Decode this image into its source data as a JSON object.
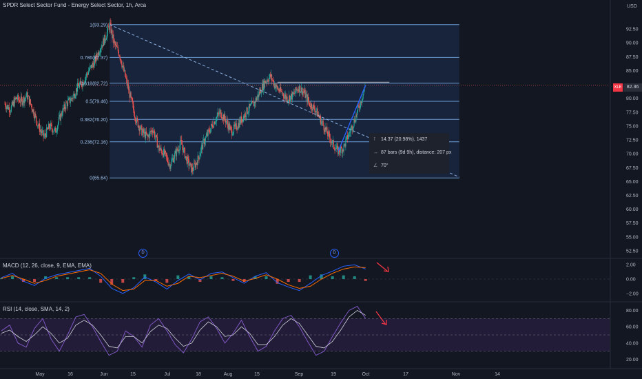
{
  "header": {
    "title": "SPDR Select Sector Fund - Energy Select Sector, 1h, Arca",
    "currency": "USD",
    "symbol_tag": "XLE",
    "last_price": "82.36"
  },
  "colors": {
    "background": "#131722",
    "up": "#26a69a",
    "down": "#ef5350",
    "fib_line": "#6c9bd2",
    "fib_fill": "#1b2a44",
    "trendline": "#8fb4e6",
    "macd_line": "#2962ff",
    "signal_line": "#ff6d00",
    "rsi_line": "#7e57c2",
    "rsi_band": "#2a1f42",
    "arrow": "#f23645"
  },
  "measure_tooltip": {
    "price_change": "14.37 (20.98%), 1437",
    "bars": "87 bars (9d 9h), distance: 207 px",
    "angle": "70°"
  },
  "events": [
    "D",
    "D"
  ],
  "chart_data": [
    {
      "type": "candlestick",
      "title": "SPDR Select Sector Fund - Energy Select Sector, 1h, Arca",
      "x_labels": [
        "May",
        "16",
        "Jun",
        "15",
        "Jul",
        "18",
        "Aug",
        "15",
        "Sep",
        "19",
        "Oct",
        "17",
        "Nov",
        "14"
      ],
      "y_ticks": [
        92.5,
        90,
        87.5,
        85,
        82.5,
        80,
        77.5,
        75,
        72.5,
        70,
        67.5,
        65,
        62.5,
        60,
        57.5,
        55,
        52.5
      ],
      "ylim": [
        51.5,
        95
      ],
      "last_price": 82.36,
      "close_path": [
        [
          0,
          79
        ],
        [
          0.4,
          78
        ],
        [
          0.8,
          80
        ],
        [
          1.2,
          79.5
        ],
        [
          1.6,
          80.5
        ],
        [
          2.0,
          78
        ],
        [
          2.4,
          75
        ],
        [
          2.8,
          73
        ],
        [
          3.2,
          75
        ],
        [
          3.6,
          74
        ],
        [
          4.0,
          77
        ],
        [
          4.4,
          79
        ],
        [
          4.8,
          80
        ],
        [
          5.2,
          82
        ],
        [
          5.6,
          83
        ],
        [
          6.0,
          85
        ],
        [
          6.4,
          86.5
        ],
        [
          6.8,
          89
        ],
        [
          7.2,
          91
        ],
        [
          7.5,
          93.29
        ],
        [
          7.8,
          90
        ],
        [
          8.2,
          88
        ],
        [
          8.6,
          84
        ],
        [
          9.0,
          80
        ],
        [
          9.4,
          76
        ],
        [
          9.8,
          74
        ],
        [
          10.2,
          73
        ],
        [
          10.6,
          74.5
        ],
        [
          11.0,
          71
        ],
        [
          11.4,
          70
        ],
        [
          11.8,
          68
        ],
        [
          12.2,
          70
        ],
        [
          12.6,
          72
        ],
        [
          13.0,
          69
        ],
        [
          13.4,
          67
        ],
        [
          13.8,
          69
        ],
        [
          14.2,
          72
        ],
        [
          14.6,
          74
        ],
        [
          15.0,
          76
        ],
        [
          15.4,
          77.5
        ],
        [
          15.8,
          76
        ],
        [
          16.2,
          74
        ],
        [
          16.6,
          75
        ],
        [
          17.0,
          76.5
        ],
        [
          17.4,
          78
        ],
        [
          17.8,
          79
        ],
        [
          18.2,
          81
        ],
        [
          18.6,
          83
        ],
        [
          19.0,
          84
        ],
        [
          19.4,
          82
        ],
        [
          19.8,
          81
        ],
        [
          20.2,
          80
        ],
        [
          20.6,
          80.5
        ],
        [
          21.0,
          82
        ],
        [
          21.4,
          81
        ],
        [
          21.8,
          79
        ],
        [
          22.2,
          78
        ],
        [
          22.6,
          76
        ],
        [
          23.0,
          74
        ],
        [
          23.4,
          72
        ],
        [
          23.8,
          70.5
        ],
        [
          24.2,
          71
        ],
        [
          24.6,
          73.5
        ],
        [
          25.0,
          76
        ],
        [
          25.4,
          79
        ],
        [
          25.8,
          82.36
        ]
      ],
      "fibonacci": [
        {
          "label": "1(93.29)",
          "value": 93.29
        },
        {
          "label": "0.786(87.37)",
          "value": 87.37
        },
        {
          "label": "0.618(82.72)",
          "value": 82.72
        },
        {
          "label": "0.5(79.46)",
          "value": 79.46
        },
        {
          "label": "0.382(76.20)",
          "value": 76.2
        },
        {
          "label": "0.236(72.16)",
          "value": 72.16
        },
        {
          "label": "0(65.64)",
          "value": 65.64
        }
      ],
      "trendline": {
        "from": [
          7.5,
          93.29
        ],
        "to": [
          32.5,
          65.8
        ],
        "style": "dashed"
      },
      "resistance_line": {
        "from": [
          19.5,
          82.9
        ],
        "to": [
          27.5,
          82.9
        ]
      },
      "grid": false,
      "legend": "top-left"
    },
    {
      "type": "line",
      "title": "MACD (12, 26, close, 9, EMA, EMA)",
      "y_ticks": [
        "2.00",
        "0.00",
        "−2.00"
      ],
      "ylim": [
        -2.6,
        2.6
      ],
      "series": [
        {
          "name": "MACD",
          "values": [
            0.2,
            0.8,
            -0.3,
            -0.9,
            0.1,
            0.6,
            0.9,
            1.2,
            1.5,
            0.4,
            -1.3,
            -2.0,
            -1.2,
            0.3,
            -0.4,
            -1.4,
            -0.2,
            0.7,
            -0.1,
            0.8,
            1.0,
            0.2,
            -0.6,
            0.4,
            0.9,
            -0.5,
            -1.1,
            -1.6,
            -0.6,
            0.5,
            1.1,
            1.8,
            2.0,
            1.4
          ]
        },
        {
          "name": "Signal",
          "values": [
            0.1,
            0.5,
            0.0,
            -0.6,
            -0.2,
            0.4,
            0.7,
            1.0,
            1.3,
            0.8,
            -0.7,
            -1.6,
            -1.4,
            -0.2,
            -0.2,
            -1.0,
            -0.6,
            0.4,
            0.2,
            0.5,
            0.8,
            0.4,
            -0.3,
            0.1,
            0.6,
            0.0,
            -0.8,
            -1.3,
            -1.0,
            0.0,
            0.8,
            1.4,
            1.7,
            1.6
          ]
        }
      ]
    },
    {
      "type": "line",
      "title": "RSI (14, close, SMA, 14, 2)",
      "y_ticks": [
        "80.00",
        "60.00",
        "40.00",
        "20.00"
      ],
      "ylim": [
        12,
        88
      ],
      "band": [
        30,
        70
      ],
      "series": [
        {
          "name": "RSI",
          "values": [
            55,
            62,
            40,
            35,
            58,
            70,
            45,
            30,
            50,
            72,
            75,
            60,
            42,
            25,
            30,
            55,
            48,
            35,
            62,
            70,
            55,
            38,
            28,
            45,
            66,
            72,
            58,
            40,
            52,
            68,
            48,
            30,
            36,
            55,
            70,
            74,
            60,
            42,
            25,
            30,
            48,
            65,
            80,
            85,
            70
          ]
        },
        {
          "name": "RSI-based MA",
          "values": [
            52,
            56,
            48,
            42,
            50,
            60,
            52,
            40,
            46,
            62,
            68,
            62,
            50,
            36,
            34,
            48,
            48,
            40,
            54,
            62,
            58,
            46,
            36,
            40,
            56,
            66,
            60,
            48,
            50,
            60,
            52,
            38,
            38,
            48,
            62,
            70,
            64,
            50,
            36,
            34,
            42,
            56,
            72,
            80,
            74
          ]
        }
      ]
    }
  ]
}
